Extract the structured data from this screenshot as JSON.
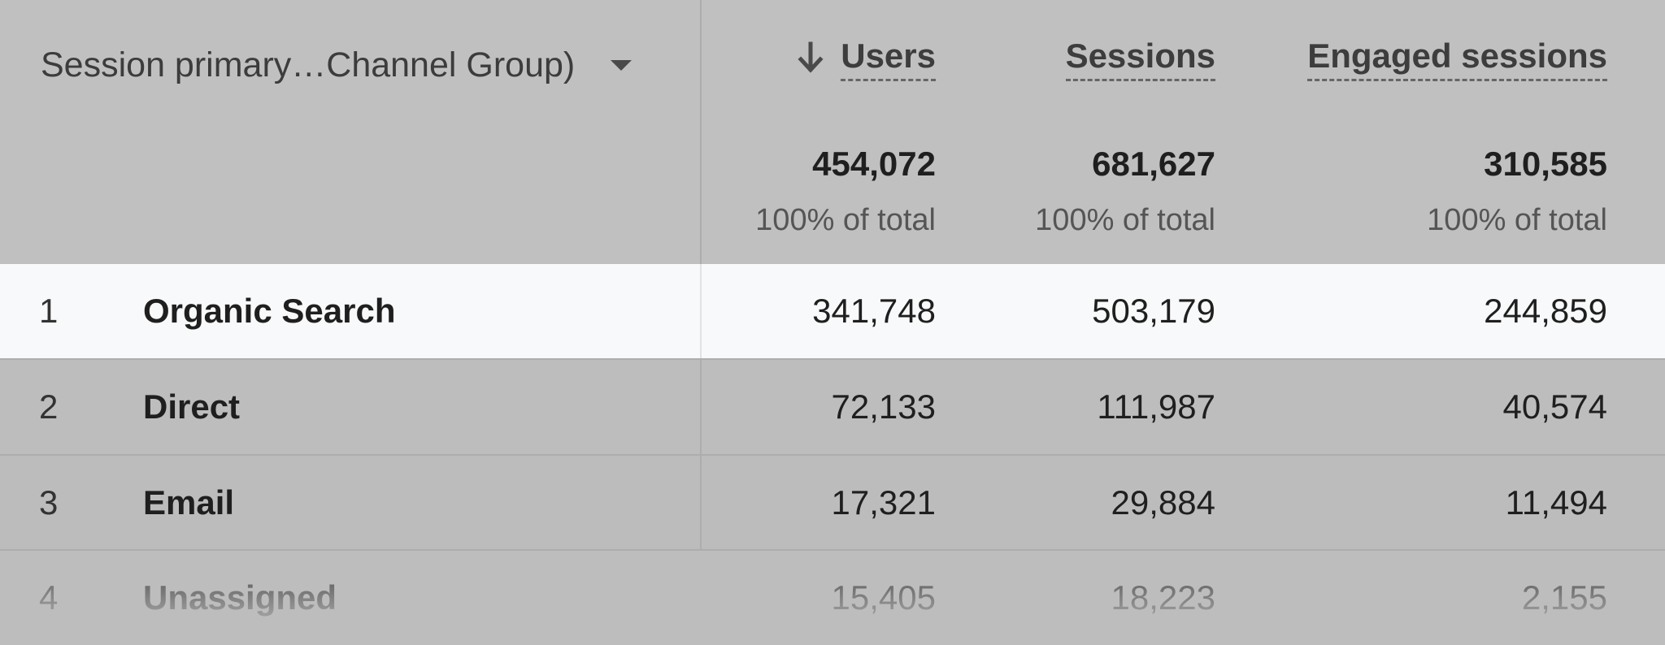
{
  "dimension": {
    "label": "Session primary…Channel Group)"
  },
  "columns": [
    {
      "key": "users",
      "label": "Users",
      "sorted": true,
      "total": "454,072",
      "pct": "100% of total"
    },
    {
      "key": "sessions",
      "label": "Sessions",
      "sorted": false,
      "total": "681,627",
      "pct": "100% of total"
    },
    {
      "key": "engaged",
      "label": "Engaged sessions",
      "sorted": false,
      "total": "310,585",
      "pct": "100% of total"
    }
  ],
  "rows": [
    {
      "index": "1",
      "channel": "Organic Search",
      "users": "341,748",
      "sessions": "503,179",
      "engaged": "244,859"
    },
    {
      "index": "2",
      "channel": "Direct",
      "users": "72,133",
      "sessions": "111,987",
      "engaged": "40,574"
    },
    {
      "index": "3",
      "channel": "Email",
      "users": "17,321",
      "sessions": "29,884",
      "engaged": "11,494"
    },
    {
      "index": "4",
      "channel": "Unassigned",
      "users": "15,405",
      "sessions": "18,223",
      "engaged": "2,155"
    }
  ],
  "colors": {
    "header_bg": "#c0c0c0",
    "highlight_row": "#f8f9fa",
    "row_bg": "#bdbdbd"
  },
  "icons": {
    "sort": "arrow-down-icon",
    "dropdown": "caret-down-icon"
  }
}
